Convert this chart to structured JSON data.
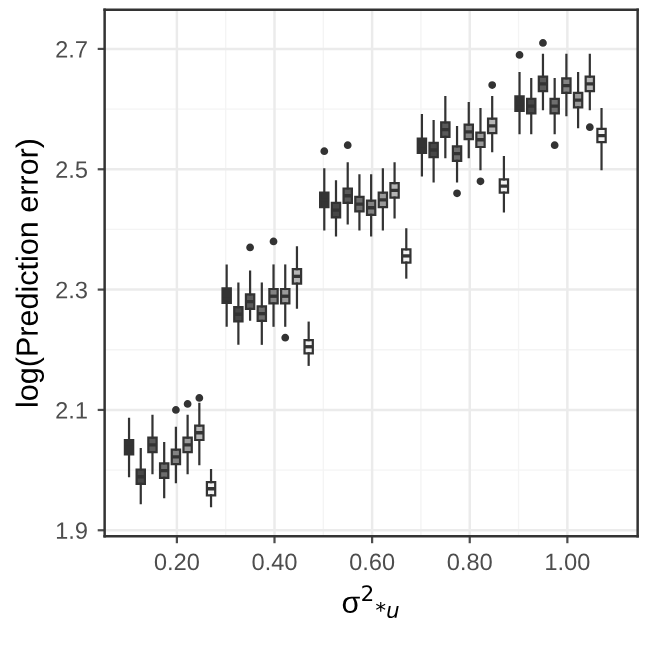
{
  "chart_data": {
    "type": "box",
    "xlabel": "σ$^{2}$$_{*u}$",
    "ylabel": "log(Prediction error)",
    "xlim": [
      0.052,
      1.144
    ],
    "ylim": [
      1.89,
      2.765
    ],
    "xticks": [
      {
        "value": 0.2,
        "label": "0.20"
      },
      {
        "value": 0.4,
        "label": "0.40"
      },
      {
        "value": 0.6,
        "label": "0.60"
      },
      {
        "value": 0.8,
        "label": "0.80"
      },
      {
        "value": 1.0,
        "label": "1.00"
      }
    ],
    "yticks": [
      1.9,
      2.1,
      2.3,
      2.5,
      2.7
    ],
    "grid": true,
    "legend": false,
    "series": [
      {
        "color": "#333333",
        "x": [
          0.102,
          0.302,
          0.502,
          0.702,
          0.902
        ],
        "boxes": [
          {
            "low": 1.99,
            "q1": 2.026,
            "median": 2.038,
            "q3": 2.05,
            "high": 2.085
          },
          {
            "low": 2.24,
            "q1": 2.278,
            "median": 2.29,
            "q3": 2.302,
            "high": 2.34
          },
          {
            "low": 2.4,
            "q1": 2.437,
            "median": 2.449,
            "q3": 2.461,
            "high": 2.5,
            "outliers": [
              2.53
            ]
          },
          {
            "low": 2.49,
            "q1": 2.527,
            "median": 2.539,
            "q3": 2.551,
            "high": 2.59
          },
          {
            "low": 2.56,
            "q1": 2.597,
            "median": 2.609,
            "q3": 2.621,
            "high": 2.66,
            "outliers": [
              2.69
            ]
          }
        ]
      },
      {
        "color": "#474747",
        "x": [
          0.126,
          0.326,
          0.526,
          0.726,
          0.926
        ],
        "boxes": [
          {
            "low": 1.945,
            "q1": 1.977,
            "median": 1.989,
            "q3": 2.001,
            "high": 2.035
          },
          {
            "low": 2.21,
            "q1": 2.247,
            "median": 2.259,
            "q3": 2.271,
            "high": 2.31
          },
          {
            "low": 2.39,
            "q1": 2.42,
            "median": 2.432,
            "q3": 2.444,
            "high": 2.48
          },
          {
            "low": 2.48,
            "q1": 2.52,
            "median": 2.532,
            "q3": 2.544,
            "high": 2.58
          },
          {
            "low": 2.56,
            "q1": 2.593,
            "median": 2.605,
            "q3": 2.617,
            "high": 2.65
          }
        ]
      },
      {
        "color": "#5a5a5a",
        "x": [
          0.15,
          0.35,
          0.55,
          0.75,
          0.95
        ],
        "boxes": [
          {
            "low": 1.995,
            "q1": 2.03,
            "median": 2.042,
            "q3": 2.054,
            "high": 2.09
          },
          {
            "low": 2.25,
            "q1": 2.268,
            "median": 2.28,
            "q3": 2.292,
            "high": 2.33,
            "outliers": [
              2.37
            ]
          },
          {
            "low": 2.41,
            "q1": 2.444,
            "median": 2.456,
            "q3": 2.468,
            "high": 2.51,
            "outliers": [
              2.54
            ]
          },
          {
            "low": 2.52,
            "q1": 2.554,
            "median": 2.566,
            "q3": 2.578,
            "high": 2.62
          },
          {
            "low": 2.6,
            "q1": 2.63,
            "median": 2.642,
            "q3": 2.654,
            "high": 2.69,
            "outliers": [
              2.71
            ]
          }
        ]
      },
      {
        "color": "#6e6e6e",
        "x": [
          0.174,
          0.374,
          0.574,
          0.774,
          0.974
        ],
        "boxes": [
          {
            "low": 1.955,
            "q1": 1.987,
            "median": 1.999,
            "q3": 2.011,
            "high": 2.045
          },
          {
            "low": 2.21,
            "q1": 2.248,
            "median": 2.26,
            "q3": 2.272,
            "high": 2.31
          },
          {
            "low": 2.4,
            "q1": 2.43,
            "median": 2.442,
            "q3": 2.454,
            "high": 2.49
          },
          {
            "low": 2.48,
            "q1": 2.514,
            "median": 2.526,
            "q3": 2.538,
            "high": 2.57,
            "outliers": [
              2.46
            ]
          },
          {
            "low": 2.56,
            "q1": 2.593,
            "median": 2.605,
            "q3": 2.617,
            "high": 2.65,
            "outliers": [
              2.54
            ]
          }
        ]
      },
      {
        "color": "#838383",
        "x": [
          0.198,
          0.398,
          0.598,
          0.798,
          0.998
        ],
        "boxes": [
          {
            "low": 1.98,
            "q1": 2.01,
            "median": 2.022,
            "q3": 2.034,
            "high": 2.07,
            "outliers": [
              2.1
            ]
          },
          {
            "low": 2.24,
            "q1": 2.277,
            "median": 2.289,
            "q3": 2.301,
            "high": 2.34,
            "outliers": [
              2.38
            ]
          },
          {
            "low": 2.39,
            "q1": 2.424,
            "median": 2.436,
            "q3": 2.448,
            "high": 2.49
          },
          {
            "low": 2.52,
            "q1": 2.55,
            "median": 2.562,
            "q3": 2.574,
            "high": 2.61
          },
          {
            "low": 2.59,
            "q1": 2.627,
            "median": 2.639,
            "q3": 2.651,
            "high": 2.69
          }
        ]
      },
      {
        "color": "#9a9a9a",
        "x": [
          0.222,
          0.422,
          0.622,
          0.822,
          1.022
        ],
        "boxes": [
          {
            "low": 1.995,
            "q1": 2.03,
            "median": 2.042,
            "q3": 2.054,
            "high": 2.09,
            "outliers": [
              2.11
            ]
          },
          {
            "low": 2.24,
            "q1": 2.277,
            "median": 2.289,
            "q3": 2.301,
            "high": 2.34,
            "outliers": [
              2.22
            ]
          },
          {
            "low": 2.4,
            "q1": 2.437,
            "median": 2.449,
            "q3": 2.461,
            "high": 2.5
          },
          {
            "low": 2.5,
            "q1": 2.537,
            "median": 2.549,
            "q3": 2.561,
            "high": 2.6,
            "outliers": [
              2.48
            ]
          },
          {
            "low": 2.57,
            "q1": 2.603,
            "median": 2.615,
            "q3": 2.627,
            "high": 2.66
          }
        ]
      },
      {
        "color": "#b5b5b5",
        "x": [
          0.246,
          0.446,
          0.646,
          0.846,
          1.046
        ],
        "boxes": [
          {
            "low": 2.01,
            "q1": 2.05,
            "median": 2.062,
            "q3": 2.074,
            "high": 2.11,
            "outliers": [
              2.12
            ]
          },
          {
            "low": 2.27,
            "q1": 2.31,
            "median": 2.322,
            "q3": 2.334,
            "high": 2.37
          },
          {
            "low": 2.42,
            "q1": 2.453,
            "median": 2.465,
            "q3": 2.477,
            "high": 2.51
          },
          {
            "low": 2.53,
            "q1": 2.56,
            "median": 2.572,
            "q3": 2.584,
            "high": 2.62,
            "outliers": [
              2.64
            ]
          },
          {
            "low": 2.6,
            "q1": 2.63,
            "median": 2.642,
            "q3": 2.654,
            "high": 2.69,
            "outliers": [
              2.57
            ]
          }
        ]
      },
      {
        "color": "#f2f2f2",
        "x": [
          0.27,
          0.47,
          0.67,
          0.87,
          1.07
        ],
        "boxes": [
          {
            "low": 1.94,
            "q1": 1.958,
            "median": 1.969,
            "q3": 1.98,
            "high": 2.0
          },
          {
            "low": 2.175,
            "q1": 2.194,
            "median": 2.205,
            "q3": 2.216,
            "high": 2.245
          },
          {
            "low": 2.32,
            "q1": 2.345,
            "median": 2.356,
            "q3": 2.367,
            "high": 2.4
          },
          {
            "low": 2.43,
            "q1": 2.461,
            "median": 2.472,
            "q3": 2.483,
            "high": 2.52
          },
          {
            "low": 2.5,
            "q1": 2.545,
            "median": 2.556,
            "q3": 2.567,
            "high": 2.6
          }
        ]
      }
    ]
  }
}
